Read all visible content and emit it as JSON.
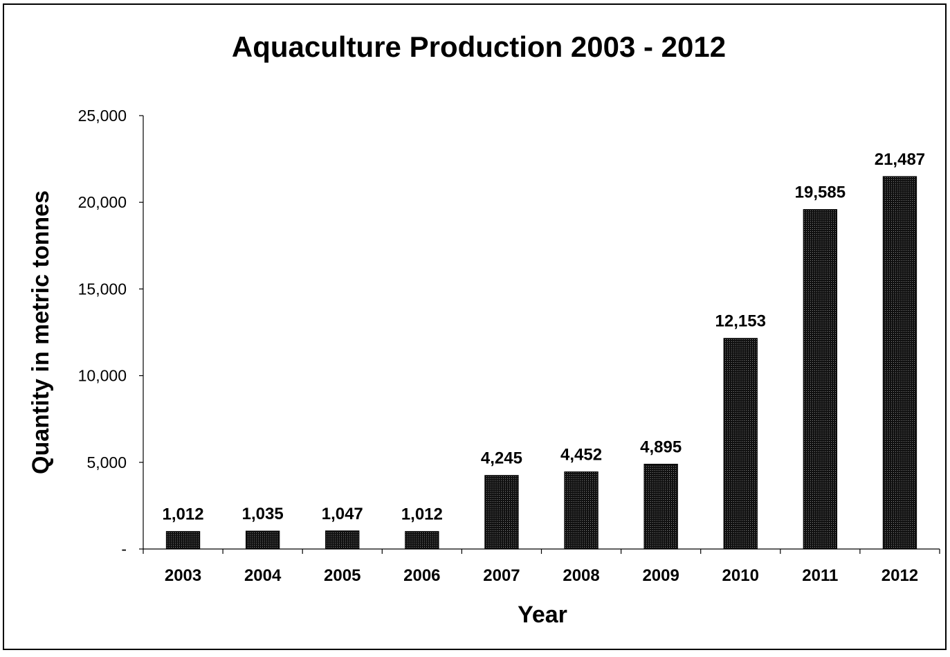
{
  "chart_data": {
    "type": "bar",
    "title": "Aquaculture Production 2003 - 2012",
    "xlabel": "Year",
    "ylabel": "Quantity in metric tonnes",
    "categories": [
      "2003",
      "2004",
      "2005",
      "2006",
      "2007",
      "2008",
      "2009",
      "2010",
      "2011",
      "2012"
    ],
    "values": [
      1012,
      1035,
      1047,
      1012,
      4245,
      4452,
      4895,
      12153,
      19585,
      21487
    ],
    "data_labels": [
      "1,012",
      "1,035",
      "1,047",
      "1,012",
      "4,245",
      "4,452",
      "4,895",
      "12,153",
      "19,585",
      "21,487"
    ],
    "ylim": [
      0,
      25000
    ],
    "yticks": [
      0,
      5000,
      10000,
      15000,
      20000,
      25000
    ],
    "ytick_labels": [
      "-",
      "5,000",
      "10,000",
      "15,000",
      "20,000",
      "25,000"
    ],
    "grid": false,
    "legend": "none",
    "bar_fill": "#1a1a1a",
    "bar_stroke": "#000000"
  }
}
